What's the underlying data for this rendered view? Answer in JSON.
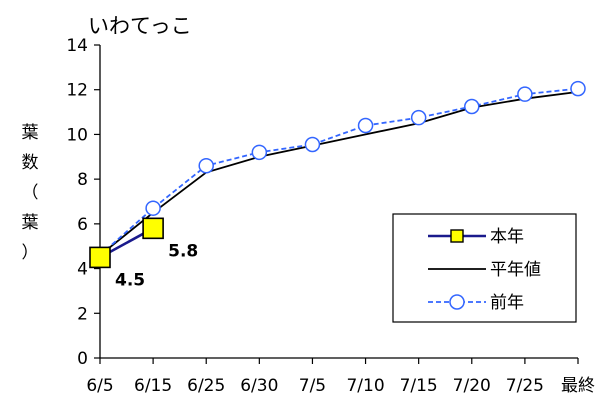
{
  "chart_data": {
    "type": "line",
    "title": "いわてっこ",
    "ylabel": "葉数（葉）",
    "xlabel": "",
    "categories": [
      "6/5",
      "6/15",
      "6/25",
      "6/30",
      "7/5",
      "7/10",
      "7/15",
      "7/20",
      "7/25",
      "最終"
    ],
    "ylim": [
      0,
      14
    ],
    "yticks": [
      0,
      2,
      4,
      6,
      8,
      10,
      12,
      14
    ],
    "grid": false,
    "legend_position": "right",
    "series": [
      {
        "name": "本年",
        "values": [
          4.5,
          5.8,
          null,
          null,
          null,
          null,
          null,
          null,
          null,
          null
        ],
        "color": "#1a1a8c",
        "marker": "square",
        "marker_fill": "#ffff00"
      },
      {
        "name": "平年値",
        "values": [
          4.6,
          6.5,
          8.3,
          9.0,
          9.5,
          10.0,
          10.5,
          11.2,
          11.6,
          11.9
        ],
        "color": "#000000",
        "marker": "none"
      },
      {
        "name": "前年",
        "values": [
          4.6,
          6.7,
          8.6,
          9.2,
          9.55,
          10.4,
          10.75,
          11.25,
          11.8,
          12.05
        ],
        "color": "#3366ff",
        "marker": "circle",
        "dashed": true
      }
    ],
    "data_labels": [
      {
        "series": "本年",
        "index": 0,
        "text": "4.5"
      },
      {
        "series": "本年",
        "index": 1,
        "text": "5.8"
      }
    ]
  }
}
